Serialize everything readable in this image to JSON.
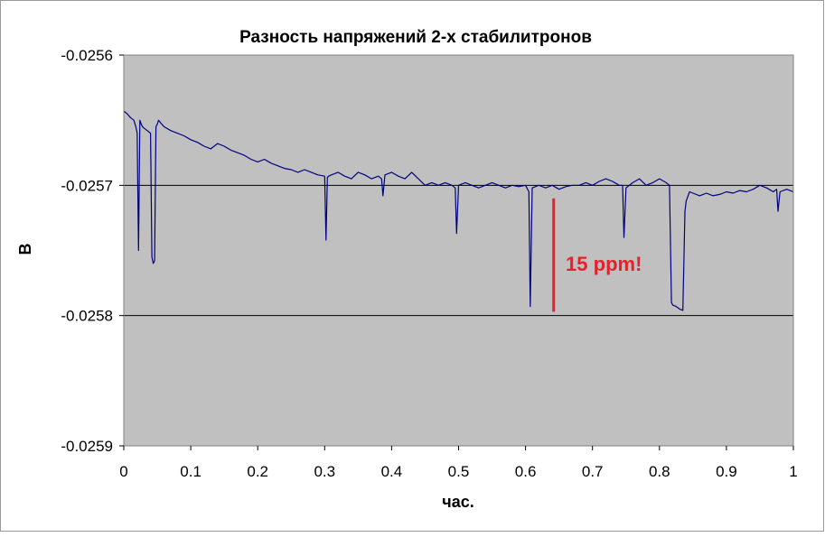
{
  "chart_data": {
    "type": "line",
    "title": "Разность напряжений 2-х стабилитронов",
    "xlabel": "час.",
    "ylabel": "В",
    "xlim": [
      0,
      1
    ],
    "ylim": [
      -0.0259,
      -0.0256
    ],
    "x_ticks": [
      "0",
      "0.1",
      "0.2",
      "0.3",
      "0.4",
      "0.5",
      "0.6",
      "0.7",
      "0.8",
      "0.9",
      "1"
    ],
    "y_ticks": [
      "-0.0256",
      "-0.0257",
      "-0.0258",
      "-0.0259"
    ],
    "y_tick_values": [
      -0.0256,
      -0.0257,
      -0.0258,
      -0.0259
    ],
    "gridlines_y": [
      -0.0257,
      -0.0258
    ],
    "grid": "horizontal major only",
    "plot_background": "#c0c0c0",
    "series": [
      {
        "color": "#000080",
        "x": [
          0.0,
          0.005,
          0.01,
          0.015,
          0.018,
          0.02,
          0.022,
          0.024,
          0.026,
          0.028,
          0.03,
          0.035,
          0.04,
          0.042,
          0.044,
          0.046,
          0.048,
          0.05,
          0.052,
          0.055,
          0.06,
          0.07,
          0.08,
          0.09,
          0.1,
          0.11,
          0.12,
          0.13,
          0.14,
          0.15,
          0.16,
          0.17,
          0.18,
          0.19,
          0.2,
          0.21,
          0.22,
          0.23,
          0.24,
          0.25,
          0.26,
          0.27,
          0.28,
          0.29,
          0.3,
          0.302,
          0.304,
          0.306,
          0.31,
          0.32,
          0.33,
          0.34,
          0.35,
          0.36,
          0.37,
          0.38,
          0.385,
          0.387,
          0.39,
          0.4,
          0.41,
          0.42,
          0.43,
          0.44,
          0.45,
          0.46,
          0.47,
          0.48,
          0.49,
          0.495,
          0.497,
          0.5,
          0.51,
          0.52,
          0.53,
          0.54,
          0.55,
          0.56,
          0.57,
          0.58,
          0.59,
          0.6,
          0.605,
          0.607,
          0.61,
          0.62,
          0.63,
          0.64,
          0.65,
          0.66,
          0.67,
          0.68,
          0.69,
          0.7,
          0.71,
          0.72,
          0.73,
          0.74,
          0.745,
          0.747,
          0.75,
          0.76,
          0.77,
          0.78,
          0.79,
          0.8,
          0.81,
          0.815,
          0.818,
          0.82,
          0.825,
          0.83,
          0.835,
          0.838,
          0.84,
          0.845,
          0.85,
          0.86,
          0.87,
          0.88,
          0.89,
          0.9,
          0.91,
          0.92,
          0.93,
          0.94,
          0.95,
          0.96,
          0.97,
          0.975,
          0.977,
          0.98,
          0.99,
          1.0
        ],
        "y": [
          -0.025643,
          -0.025645,
          -0.025648,
          -0.02565,
          -0.025655,
          -0.02566,
          -0.02575,
          -0.02565,
          -0.025653,
          -0.025655,
          -0.025656,
          -0.025658,
          -0.02566,
          -0.025755,
          -0.02576,
          -0.025758,
          -0.025655,
          -0.025653,
          -0.02565,
          -0.025652,
          -0.025655,
          -0.025658,
          -0.02566,
          -0.025662,
          -0.025665,
          -0.025667,
          -0.02567,
          -0.025672,
          -0.025668,
          -0.02567,
          -0.025673,
          -0.025675,
          -0.025677,
          -0.02568,
          -0.025682,
          -0.02568,
          -0.025683,
          -0.025685,
          -0.025687,
          -0.025688,
          -0.02569,
          -0.025688,
          -0.02569,
          -0.025692,
          -0.025693,
          -0.025742,
          -0.025694,
          -0.025693,
          -0.025692,
          -0.02569,
          -0.025693,
          -0.025695,
          -0.02569,
          -0.025692,
          -0.025695,
          -0.025693,
          -0.025695,
          -0.025708,
          -0.025692,
          -0.02569,
          -0.025693,
          -0.025695,
          -0.02569,
          -0.025695,
          -0.0257,
          -0.025698,
          -0.0257,
          -0.025698,
          -0.0257,
          -0.025702,
          -0.025737,
          -0.0257,
          -0.025698,
          -0.0257,
          -0.025702,
          -0.0257,
          -0.025698,
          -0.0257,
          -0.025702,
          -0.0257,
          -0.025701,
          -0.0257,
          -0.025705,
          -0.025793,
          -0.025702,
          -0.0257,
          -0.025702,
          -0.0257,
          -0.025703,
          -0.025701,
          -0.0257,
          -0.0257,
          -0.025698,
          -0.0257,
          -0.025697,
          -0.025695,
          -0.025697,
          -0.0257,
          -0.0257,
          -0.02574,
          -0.025702,
          -0.025698,
          -0.025695,
          -0.0257,
          -0.025698,
          -0.025695,
          -0.025698,
          -0.0257,
          -0.02579,
          -0.025792,
          -0.025793,
          -0.025795,
          -0.025796,
          -0.02572,
          -0.025712,
          -0.025705,
          -0.025706,
          -0.025708,
          -0.025706,
          -0.025708,
          -0.025707,
          -0.025705,
          -0.025706,
          -0.025704,
          -0.025705,
          -0.025703,
          -0.0257,
          -0.025702,
          -0.025705,
          -0.025703,
          -0.02572,
          -0.025705,
          -0.025703,
          -0.025705
        ]
      }
    ],
    "annotations": [
      {
        "type": "vline",
        "color": "#e8202a",
        "x": 0.642,
        "y_from": -0.02571,
        "y_to": -0.025797
      },
      {
        "type": "text",
        "text": "15 ppm!",
        "color": "#e8202a",
        "x": 0.66,
        "y": -0.02576
      }
    ]
  }
}
